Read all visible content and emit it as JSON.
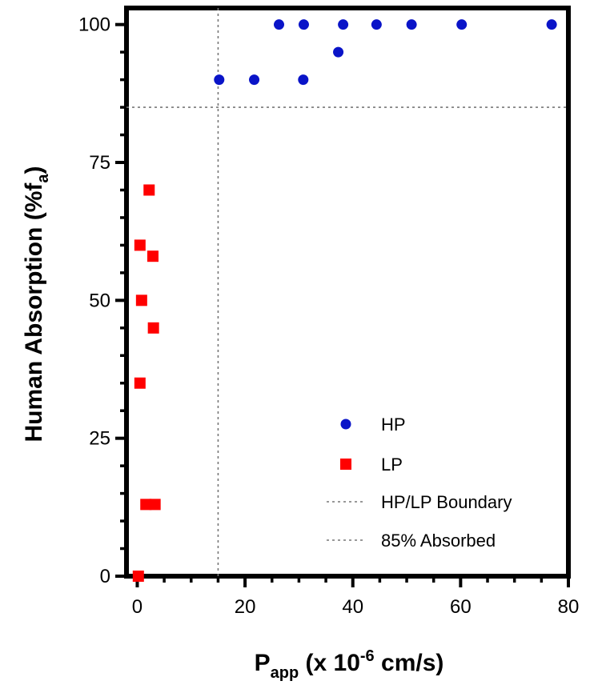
{
  "chart_data": {
    "type": "scatter",
    "xlim": [
      -2,
      80
    ],
    "ylim": [
      0,
      103
    ],
    "x_ticks": [
      0,
      20,
      40,
      60,
      80
    ],
    "y_ticks": [
      0,
      25,
      50,
      75,
      100
    ],
    "xlabel": {
      "main": "P",
      "sub": "app",
      "rest1": " (x 10",
      "sup": "-6",
      "rest2": " cm/s)"
    },
    "ylabel": {
      "main": "Human Absorption (%f",
      "sub": "a",
      "rest": ")"
    },
    "series": [
      {
        "name": "HP",
        "marker": "circle",
        "color": "#0a14c8",
        "points": [
          [
            15.2,
            90
          ],
          [
            21.7,
            90
          ],
          [
            26.3,
            100
          ],
          [
            30.8,
            90
          ],
          [
            30.9,
            100
          ],
          [
            37.3,
            95
          ],
          [
            38.2,
            100
          ],
          [
            44.4,
            100
          ],
          [
            50.9,
            100
          ],
          [
            60.2,
            100
          ],
          [
            76.9,
            100
          ]
        ]
      },
      {
        "name": "LP",
        "marker": "square",
        "color": "#ff0000",
        "points": [
          [
            2.2,
            70
          ],
          [
            0.5,
            60
          ],
          [
            2.9,
            58
          ],
          [
            0.8,
            50
          ],
          [
            3.0,
            45
          ],
          [
            0.5,
            35
          ],
          [
            1.6,
            13
          ],
          [
            3.3,
            13
          ],
          [
            0.2,
            0
          ]
        ]
      }
    ],
    "reference_lines": [
      {
        "name": "HP/LP Boundary",
        "orientation": "vertical",
        "value": 15,
        "color": "#777777",
        "style": "dotted"
      },
      {
        "name": "85% Absorbed",
        "orientation": "horizontal",
        "value": 85,
        "color": "#777777",
        "style": "dotted"
      }
    ],
    "legend": {
      "position": "bottom-right",
      "entries": [
        "HP",
        "LP",
        "HP/LP Boundary",
        "85% Absorbed"
      ]
    },
    "grid": false
  }
}
